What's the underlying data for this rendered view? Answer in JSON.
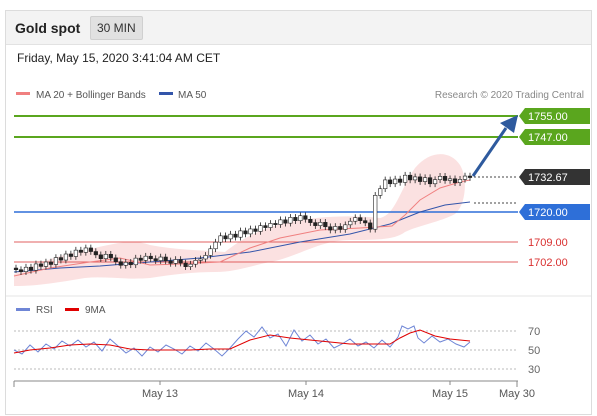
{
  "header": {
    "instrument": "Gold spot",
    "timeframe": "30 MIN"
  },
  "timestamp": "Friday, May 15, 2020 3:41:04 AM CET",
  "legend": {
    "items": [
      {
        "label": "MA 20 + Bollinger Bands",
        "color": "#f08080"
      },
      {
        "label": "MA 50",
        "color": "#3355aa"
      }
    ],
    "copyright": "Research © 2020 Trading Central"
  },
  "rsi_legend": {
    "items": [
      {
        "label": "RSI",
        "color": "#6f86d6"
      },
      {
        "label": "9MA",
        "color": "#e00000"
      }
    ]
  },
  "levels": {
    "target2": {
      "label": "1755.00",
      "color": "#5aa61e"
    },
    "target1": {
      "label": "1747.00",
      "color": "#5aa61e"
    },
    "current": {
      "label": "1732.67",
      "color": "#333333"
    },
    "pivot": {
      "label": "1720.00",
      "color": "#2e6fd8"
    },
    "support1": {
      "label": "1709.00",
      "color": "#d93030"
    },
    "support2": {
      "label": "1702.00",
      "color": "#d93030"
    }
  },
  "rsi_scale": [
    "70",
    "50",
    "30"
  ],
  "x_axis": [
    "May 13",
    "May 14",
    "May 15",
    "May 30"
  ],
  "chart_data": {
    "type": "candlestick",
    "price_lines": [
      {
        "name": "target 2",
        "value": 1755.0
      },
      {
        "name": "target 1",
        "value": 1747.0
      },
      {
        "name": "last",
        "value": 1732.67
      },
      {
        "name": "pivot",
        "value": 1720.0
      },
      {
        "name": "support 1",
        "value": 1709.0
      },
      {
        "name": "support 2",
        "value": 1702.0
      }
    ],
    "closes": [
      1699.2,
      1698.5,
      1700.1,
      1699.0,
      1701.3,
      1700.4,
      1702.0,
      1701.1,
      1703.6,
      1702.7,
      1704.9,
      1704.0,
      1706.3,
      1705.5,
      1707.1,
      1705.8,
      1704.6,
      1703.2,
      1704.8,
      1703.5,
      1702.1,
      1700.8,
      1701.9,
      1701.0,
      1703.4,
      1702.6,
      1704.1,
      1703.2,
      1702.5,
      1703.8,
      1702.4,
      1701.5,
      1702.9,
      1701.6,
      1700.3,
      1701.2,
      1702.6,
      1703.1,
      1704.4,
      1706.8,
      1709.2,
      1711.5,
      1710.4,
      1712.1,
      1711.0,
      1713.3,
      1712.2,
      1714.0,
      1713.1,
      1715.2,
      1714.5,
      1716.0,
      1715.6,
      1717.3,
      1716.1,
      1718.2,
      1717.0,
      1718.8,
      1717.5,
      1716.3,
      1715.2,
      1716.4,
      1714.8,
      1713.6,
      1714.9,
      1713.8,
      1715.5,
      1716.8,
      1718.1,
      1717.0,
      1716.2,
      1713.9,
      1726.2,
      1728.6,
      1731.8,
      1730.4,
      1732.1,
      1730.9,
      1733.5,
      1731.8,
      1732.9,
      1731.2,
      1732.6,
      1730.4,
      1731.9,
      1733.1,
      1731.6,
      1732.2,
      1730.8,
      1732.0,
      1733.2,
      1732.67
    ],
    "rsi_scale": [
      30,
      50,
      70
    ],
    "x_labels": [
      "May 13",
      "May 14",
      "May 15",
      "May 30"
    ],
    "legend": [
      "MA 20 + Bollinger Bands",
      "MA 50",
      "RSI",
      "9MA"
    ],
    "projection_target": 1755.0
  }
}
